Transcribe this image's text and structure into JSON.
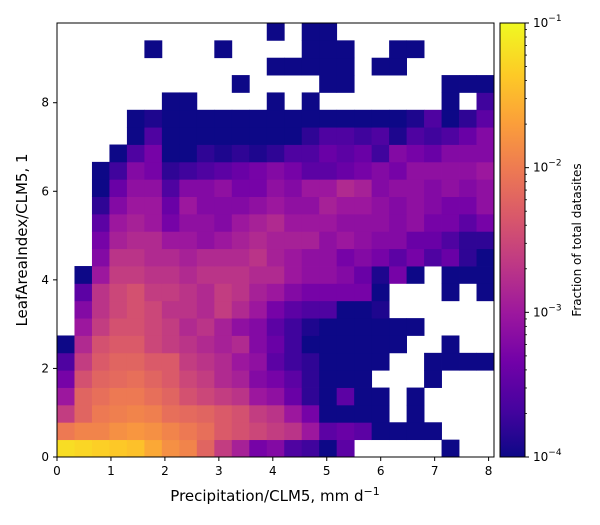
{
  "chart_data": {
    "type": "heatmap",
    "xlabel": "Precipitation/CLM5,  mm d",
    "xlabel_sup": "−1",
    "ylabel": "LeafAreaIndex/CLM5,  1",
    "xlim": [
      0,
      8.1
    ],
    "ylim": [
      0,
      9.8
    ],
    "x_ticks": [
      "0",
      "1",
      "2",
      "3",
      "4",
      "5",
      "6",
      "7",
      "8"
    ],
    "y_ticks": [
      "0",
      "2",
      "4",
      "6",
      "8"
    ],
    "bins": {
      "nx": 25,
      "ny": 25,
      "x_start": 0,
      "dx": 0.324,
      "y_start": 0,
      "dy": 0.392
    },
    "colorbar": {
      "label": "Fraction of total datasites",
      "scale": "log",
      "range": [
        0.0001,
        0.1
      ],
      "tick_labels": [
        {
          "base": "10",
          "exp": "−1"
        },
        {
          "base": "10",
          "exp": "−2"
        },
        {
          "base": "10",
          "exp": "−3"
        },
        {
          "base": "10",
          "exp": "−4"
        }
      ],
      "colormap": "plasma",
      "colormap_stops": [
        "#0d0887",
        "#46039f",
        "#7201a8",
        "#9c179e",
        "#bd3786",
        "#d8576b",
        "#ed7953",
        "#fb9f3a",
        "#fdca26",
        "#f0f921"
      ]
    },
    "grid_log10": [
      [
        -1.2,
        -1.25,
        -1.3,
        -1.35,
        -1.4,
        -1.6,
        -1.8,
        -1.9,
        -2.2,
        -2.6,
        -2.9,
        -3.3,
        -3.2,
        -3.6,
        -3.7,
        -4,
        -3.5,
        null,
        null,
        null,
        null,
        null,
        -4,
        null,
        null
      ],
      [
        -2.0,
        -1.9,
        -1.9,
        -1.8,
        -1.75,
        -1.8,
        -1.9,
        -2.0,
        -2.1,
        -2.3,
        -2.4,
        -2.5,
        -2.6,
        -2.7,
        -3.0,
        -3.5,
        -3.4,
        -3.5,
        -4,
        -4,
        -4,
        -4,
        null,
        null,
        null
      ],
      [
        -2.6,
        -2.2,
        -2.0,
        -1.95,
        -1.9,
        -1.95,
        -2.1,
        -2.15,
        -2.2,
        -2.3,
        -2.4,
        -2.6,
        -2.7,
        -3.0,
        -3.3,
        -4,
        -4,
        -4,
        -4,
        null,
        -4,
        null,
        null,
        null,
        null
      ],
      [
        -3.0,
        -2.2,
        -2.1,
        -2.0,
        -2.0,
        -2.1,
        -2.2,
        -2.4,
        -2.5,
        -2.6,
        -2.7,
        -3.0,
        -3.1,
        -3.4,
        -3.8,
        -4,
        -3.5,
        -4,
        -4,
        null,
        -4,
        null,
        null,
        null,
        null
      ],
      [
        -3.3,
        -2.4,
        -2.2,
        -2.15,
        -2.1,
        -2.2,
        -2.3,
        -2.5,
        -2.6,
        -2.8,
        -2.9,
        -3.2,
        -3.3,
        -3.5,
        -3.8,
        -4,
        -4,
        -4,
        null,
        null,
        null,
        -4,
        null,
        null,
        null
      ],
      [
        -3.6,
        -2.6,
        -2.3,
        -2.2,
        -2.2,
        -2.3,
        -2.3,
        -2.6,
        -2.7,
        -2.8,
        -3.0,
        -3.1,
        -3.5,
        -3.7,
        -3.8,
        -4,
        -4,
        -4,
        -4,
        null,
        null,
        -4,
        -4,
        -4,
        -4
      ],
      [
        -4,
        -2.8,
        -2.4,
        -2.3,
        -2.3,
        -2.5,
        -2.6,
        -2.7,
        -2.8,
        -2.9,
        -2.8,
        -3.2,
        -3.4,
        -3.7,
        -4,
        -4,
        -4,
        -4,
        -4,
        -4,
        null,
        null,
        -4,
        null,
        null
      ],
      [
        null,
        -3.0,
        -2.6,
        -2.4,
        -2.4,
        -2.5,
        -2.6,
        -2.8,
        -2.7,
        -2.9,
        -3.1,
        -3.2,
        -3.5,
        -3.7,
        -3.9,
        -4,
        -4,
        -4,
        -4,
        -4,
        -4,
        null,
        null,
        null,
        null
      ],
      [
        null,
        -3.2,
        -2.7,
        -2.5,
        -2.4,
        -2.5,
        -2.7,
        -2.7,
        -2.8,
        -2.6,
        -2.8,
        -3.0,
        -3.3,
        -3.5,
        -3.6,
        -3.6,
        -4,
        -4,
        -3.9,
        null,
        null,
        null,
        null,
        null,
        null
      ],
      [
        null,
        -3.5,
        -2.7,
        -2.5,
        -2.4,
        -2.6,
        -2.6,
        -2.7,
        -2.8,
        -2.6,
        -2.7,
        -2.9,
        -3.0,
        -3.2,
        -3.3,
        -3.3,
        -3.3,
        -3.3,
        -4,
        null,
        null,
        null,
        -4,
        null,
        -4
      ],
      [
        null,
        -4,
        -3.0,
        -2.6,
        -2.6,
        -2.7,
        -2.7,
        -2.8,
        -2.7,
        -2.7,
        -2.7,
        -2.8,
        -2.8,
        -3.0,
        -3.1,
        -3.1,
        -3.2,
        -3.4,
        -3.9,
        -3.3,
        -4,
        null,
        -4,
        -4,
        -4
      ],
      [
        null,
        null,
        -3.2,
        -2.7,
        -2.7,
        -2.8,
        -2.8,
        -2.9,
        -2.8,
        -2.8,
        -2.8,
        -2.7,
        -2.9,
        -3.0,
        -3.1,
        -3.1,
        -3.3,
        -3.2,
        -3.3,
        -3.5,
        -3.3,
        -3.6,
        -3.4,
        -3.8,
        -4
      ],
      [
        null,
        null,
        -3.3,
        -2.9,
        -2.8,
        -2.8,
        -3.0,
        -3.0,
        -3.1,
        -3.0,
        -2.9,
        -2.8,
        -2.9,
        -2.9,
        -2.9,
        -3.1,
        -3.0,
        -3.1,
        -3.2,
        -3.2,
        -3.4,
        -3.4,
        -3.6,
        -3.8,
        -3.8
      ],
      [
        null,
        null,
        -3.5,
        -3.0,
        -2.9,
        -3.0,
        -3.3,
        -3.1,
        -3.1,
        -3.2,
        -3.0,
        -2.9,
        -2.8,
        -3.0,
        -3.0,
        -3.0,
        -3.1,
        -3.1,
        -3.1,
        -3.2,
        -3.1,
        -3.3,
        -3.3,
        -3.5,
        -3.3
      ],
      [
        null,
        null,
        -3.8,
        -3.2,
        -3.0,
        -3.0,
        -3.4,
        -3.0,
        -3.2,
        -3.2,
        -3.2,
        -3.1,
        -3.0,
        -3.1,
        -3.1,
        -2.9,
        -3.0,
        -3.0,
        -3.1,
        -3.2,
        -3.1,
        -3.2,
        -3.3,
        -3.3,
        -3.1
      ],
      [
        null,
        null,
        -4,
        -3.4,
        -3.1,
        -3.1,
        -3.6,
        -3.2,
        -3.2,
        -3.1,
        -3.3,
        -3.3,
        -3.1,
        -3.2,
        -3.0,
        -3.0,
        -2.8,
        -2.9,
        -3.2,
        -3.1,
        -3.1,
        -3.2,
        -3.1,
        -3.2,
        -3.1
      ],
      [
        null,
        null,
        -4,
        -3.7,
        -3.2,
        -3.3,
        -3.8,
        -3.7,
        -3.6,
        -3.5,
        -3.4,
        -3.3,
        -3.2,
        -3.3,
        -3.5,
        -3.5,
        -3.4,
        -3.3,
        -3.2,
        -3.3,
        -3.1,
        -3.1,
        -3.1,
        -3.1,
        -3.0
      ],
      [
        null,
        null,
        null,
        -4,
        -3.6,
        -3.3,
        -4,
        -4,
        -3.8,
        -3.9,
        -3.8,
        -3.9,
        -3.8,
        -3.6,
        -3.6,
        -3.4,
        -3.5,
        -3.4,
        -3.7,
        -3.2,
        -3.3,
        -3.4,
        -3.2,
        -3.2,
        -3.2
      ],
      [
        null,
        null,
        null,
        null,
        -4,
        -3.6,
        -4,
        -4,
        -4,
        -4,
        -4,
        -4,
        -4,
        -4,
        -3.8,
        -3.6,
        -3.6,
        -3.7,
        -3.6,
        -3.9,
        -3.6,
        -3.7,
        -3.6,
        -3.4,
        -3.2
      ],
      [
        null,
        null,
        null,
        null,
        -4,
        -3.9,
        -4,
        -4,
        -4,
        -4,
        -4,
        -4,
        -4,
        -4,
        -4,
        -4,
        -4,
        -4,
        -4,
        -4,
        -3.9,
        -3.6,
        -4,
        -3.8,
        -3.5
      ],
      [
        null,
        null,
        null,
        null,
        null,
        null,
        -4,
        -4,
        null,
        null,
        null,
        null,
        -4,
        null,
        -4,
        null,
        null,
        null,
        null,
        null,
        null,
        null,
        -4,
        null,
        -3.7
      ],
      [
        null,
        null,
        null,
        null,
        null,
        null,
        null,
        null,
        null,
        null,
        -4,
        null,
        null,
        null,
        null,
        -4,
        -4,
        null,
        null,
        null,
        null,
        null,
        -4,
        -4,
        -4
      ],
      [
        null,
        null,
        null,
        null,
        null,
        null,
        null,
        null,
        null,
        null,
        null,
        null,
        -4,
        -4,
        -4,
        -4,
        -4,
        null,
        -4,
        -4,
        null,
        null,
        null,
        null,
        null
      ],
      [
        null,
        null,
        null,
        null,
        null,
        -4,
        null,
        null,
        null,
        -4,
        null,
        null,
        null,
        null,
        -4,
        -4,
        -4,
        null,
        null,
        -4,
        -4,
        null,
        null,
        null,
        null
      ],
      [
        null,
        null,
        null,
        null,
        null,
        null,
        null,
        null,
        null,
        null,
        null,
        null,
        -4,
        null,
        -4,
        -4,
        null,
        null,
        null,
        null,
        null,
        null,
        null,
        null,
        null
      ]
    ]
  }
}
